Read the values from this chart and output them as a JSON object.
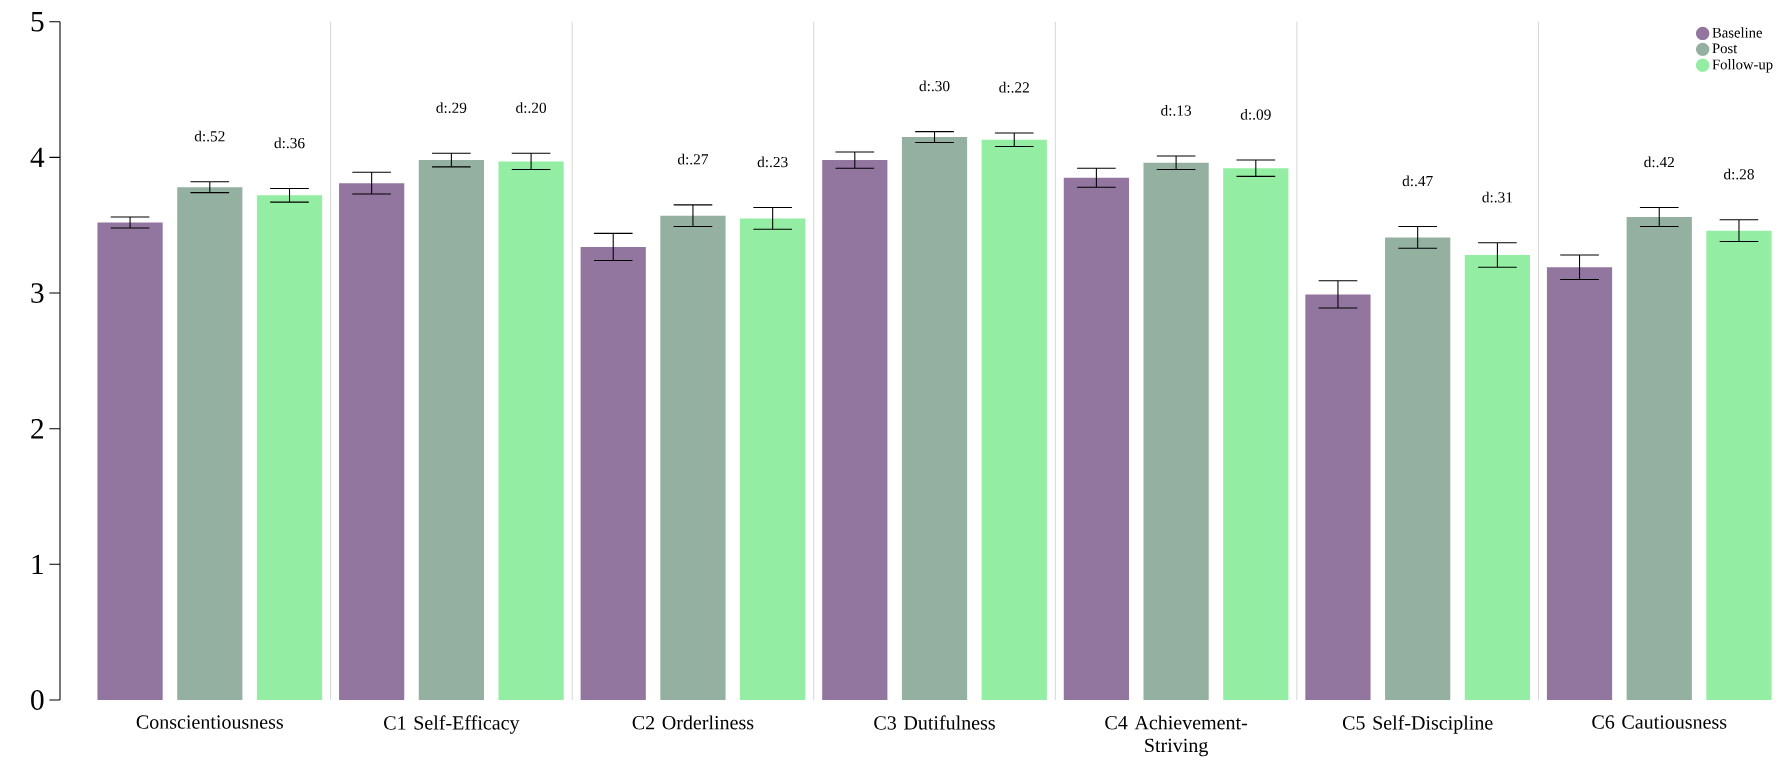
{
  "chart_data": {
    "type": "bar",
    "categories": [
      "Conscientiousness",
      "C1 Self-Efficacy",
      "C2 Orderliness",
      "C3 Dutifulness",
      "C4 Achievement-Striving",
      "C5 Self-Discipline",
      "C6 Cautiousness"
    ],
    "series": [
      {
        "name": "Baseline",
        "color": "#9376a0",
        "values": [
          3.52,
          3.81,
          3.34,
          3.98,
          3.85,
          2.99,
          3.19
        ],
        "errors": [
          0.04,
          0.08,
          0.1,
          0.06,
          0.07,
          0.1,
          0.09
        ]
      },
      {
        "name": "Post",
        "color": "#94b0a0",
        "values": [
          3.78,
          3.98,
          3.57,
          4.15,
          3.96,
          3.41,
          3.56
        ],
        "errors": [
          0.04,
          0.05,
          0.08,
          0.04,
          0.05,
          0.08,
          0.07
        ]
      },
      {
        "name": "Follow-up",
        "color": "#93eda2",
        "values": [
          3.72,
          3.97,
          3.55,
          4.13,
          3.92,
          3.28,
          3.46
        ],
        "errors": [
          0.05,
          0.06,
          0.08,
          0.05,
          0.06,
          0.09,
          0.08
        ]
      }
    ],
    "annotations": [
      "d:.52",
      "d:.36",
      "d:.29",
      "d:.20",
      "d:.27",
      "d:.23",
      "d:.30",
      "d:.22",
      "d:.13",
      "d:.09",
      "d:.47",
      "d:.31",
      "d:.42",
      "d:.28"
    ],
    "ylim": [
      0,
      5
    ],
    "yticks": [
      0,
      1,
      2,
      3,
      4,
      5
    ],
    "grid": "x",
    "legend": "top right",
    "marker": "circle"
  }
}
